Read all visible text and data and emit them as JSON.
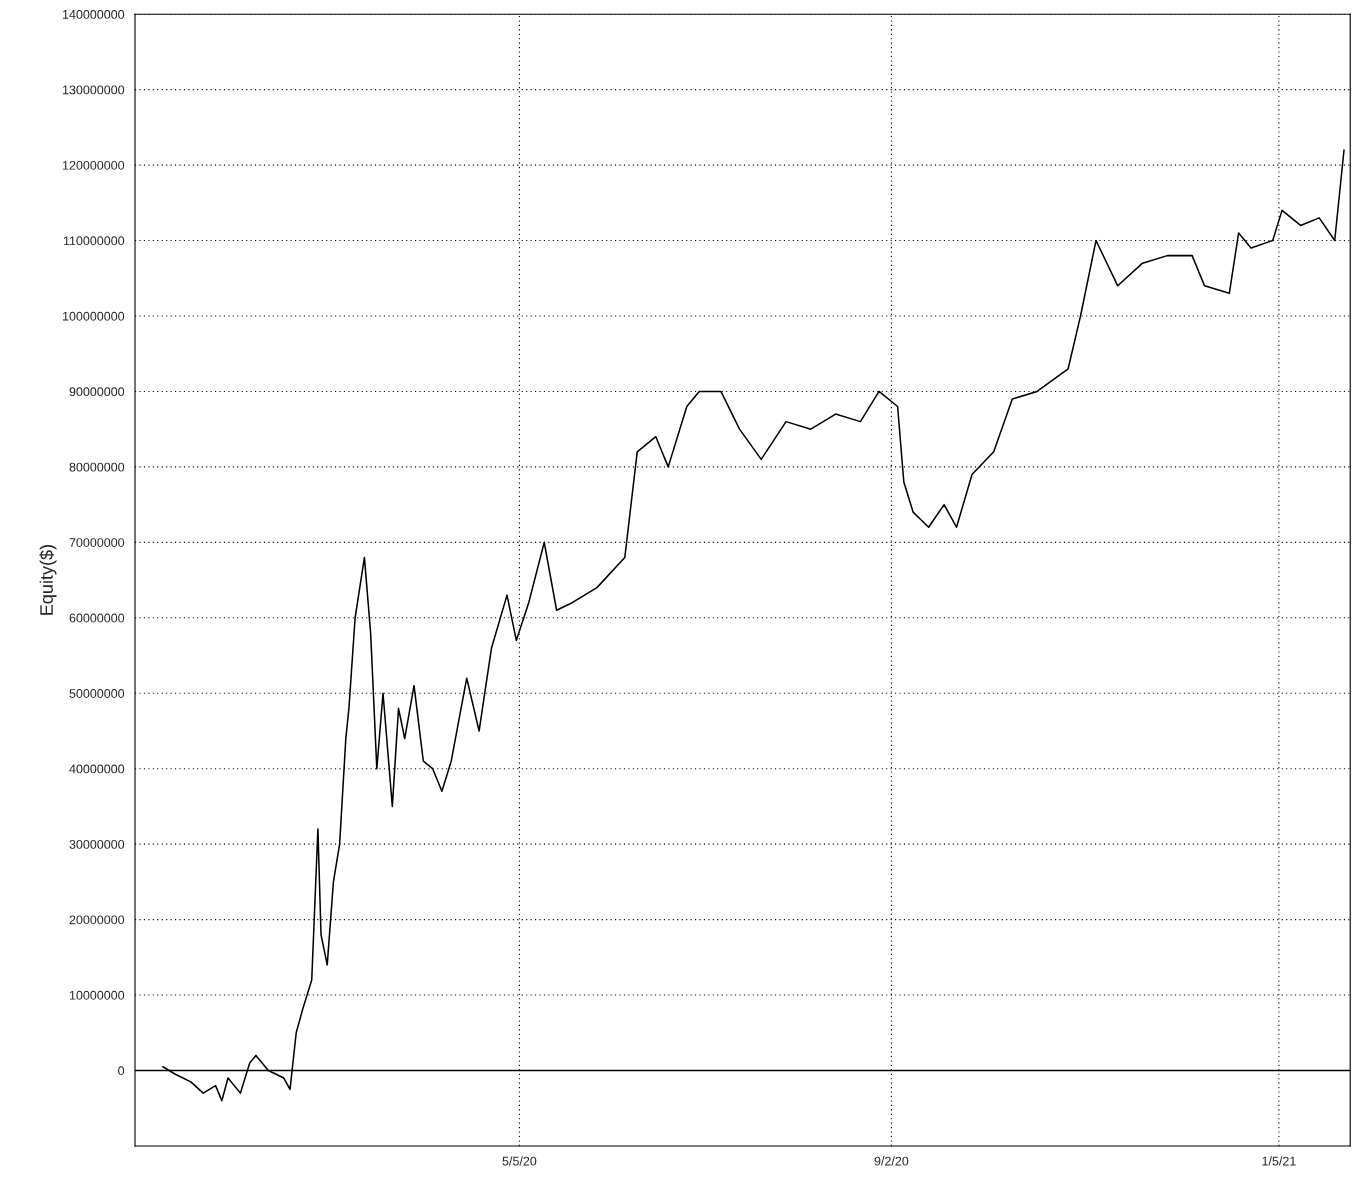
{
  "chart_data": {
    "type": "line",
    "ylabel": "Equity($)",
    "x": [
      "2020-01-11",
      "2020-01-15",
      "2020-01-20",
      "2020-01-24",
      "2020-01-28",
      "2020-01-30",
      "2020-02-01",
      "2020-02-05",
      "2020-02-08",
      "2020-02-10",
      "2020-02-14",
      "2020-02-19",
      "2020-02-21",
      "2020-02-23",
      "2020-02-25",
      "2020-02-28",
      "2020-03-01",
      "2020-03-02",
      "2020-03-04",
      "2020-03-06",
      "2020-03-08",
      "2020-03-10",
      "2020-03-11",
      "2020-03-13",
      "2020-03-16",
      "2020-03-18",
      "2020-03-20",
      "2020-03-22",
      "2020-03-25",
      "2020-03-27",
      "2020-03-29",
      "2020-04-01",
      "2020-04-04",
      "2020-04-07",
      "2020-04-10",
      "2020-04-13",
      "2020-04-18",
      "2020-04-22",
      "2020-04-26",
      "2020-05-01",
      "2020-05-04",
      "2020-05-08",
      "2020-05-13",
      "2020-05-17",
      "2020-05-22",
      "2020-05-30",
      "2020-06-08",
      "2020-06-12",
      "2020-06-18",
      "2020-06-22",
      "2020-06-28",
      "2020-07-02",
      "2020-07-09",
      "2020-07-15",
      "2020-07-22",
      "2020-07-30",
      "2020-08-07",
      "2020-08-15",
      "2020-08-23",
      "2020-08-29",
      "2020-09-04",
      "2020-09-06",
      "2020-09-09",
      "2020-09-14",
      "2020-09-19",
      "2020-09-23",
      "2020-09-28",
      "2020-10-05",
      "2020-10-11",
      "2020-10-19",
      "2020-10-29",
      "2020-11-02",
      "2020-11-07",
      "2020-11-14",
      "2020-11-22",
      "2020-11-30",
      "2020-12-08",
      "2020-12-12",
      "2020-12-20",
      "2020-12-23",
      "2020-12-27",
      "2021-01-03",
      "2021-01-06",
      "2021-01-12",
      "2021-01-18",
      "2021-01-23",
      "2021-01-26"
    ],
    "series": [
      {
        "color": "#000000",
        "values": [
          500000,
          -500000,
          -1500000,
          -3000000,
          -2000000,
          -4000000,
          -1000000,
          -3000000,
          1000000,
          2000000,
          0,
          -1000000,
          -2500000,
          5000000,
          8000000,
          12000000,
          32000000,
          18000000,
          14000000,
          25000000,
          30000000,
          44000000,
          48000000,
          60000000,
          68000000,
          58000000,
          40000000,
          50000000,
          35000000,
          48000000,
          44000000,
          51000000,
          41000000,
          40000000,
          37000000,
          41000000,
          52000000,
          45000000,
          56000000,
          63000000,
          57000000,
          62000000,
          70000000,
          61000000,
          62000000,
          64000000,
          68000000,
          82000000,
          84000000,
          80000000,
          88000000,
          90000000,
          90000000,
          85000000,
          81000000,
          86000000,
          85000000,
          87000000,
          86000000,
          90000000,
          88000000,
          78000000,
          74000000,
          72000000,
          75000000,
          72000000,
          79000000,
          82000000,
          89000000,
          90000000,
          93000000,
          100000000,
          110000000,
          104000000,
          107000000,
          108000000,
          108000000,
          104000000,
          103000000,
          111000000,
          109000000,
          110000000,
          114000000,
          112000000,
          113000000,
          110000000,
          122000000
        ]
      }
    ],
    "xlim": [
      "2020-01-02",
      "2021-01-28"
    ],
    "xticks": [
      {
        "value": "2020-05-05",
        "label": "5/5/20"
      },
      {
        "value": "2020-09-02",
        "label": "9/2/20"
      },
      {
        "value": "2021-01-05",
        "label": "1/5/21"
      }
    ],
    "ylim": [
      -10000000,
      140000000
    ],
    "yticks": [
      0,
      10000000,
      20000000,
      30000000,
      40000000,
      50000000,
      60000000,
      70000000,
      80000000,
      90000000,
      100000000,
      110000000,
      120000000,
      130000000,
      140000000
    ],
    "ref_lines": [
      {
        "axis": "y",
        "value": 0,
        "color": "#000000",
        "line_style": "solid"
      }
    ],
    "grid": true,
    "line_style": "solid",
    "marker": "none"
  }
}
